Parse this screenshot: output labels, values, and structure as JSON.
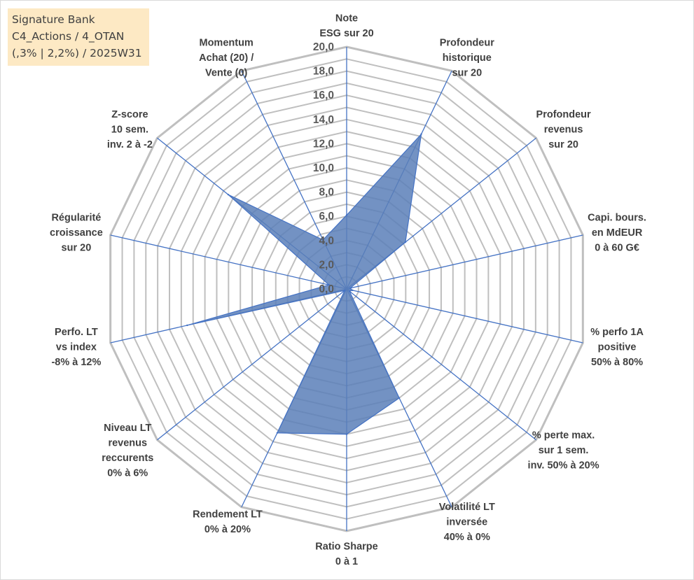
{
  "title_box": {
    "line1": "Signature Bank",
    "line2": "C4_Actions / 4_OTAN",
    "line3": "(,3% | 2,2%) / 2025W31",
    "background": "#fde9c4"
  },
  "chart_data": {
    "type": "radar",
    "rlim": [
      0,
      20
    ],
    "ticks": [
      "0,0",
      "2,0",
      "4,0",
      "6,0",
      "8,0",
      "10,0",
      "12,0",
      "14,0",
      "16,0",
      "18,0",
      "20,0"
    ],
    "tick_values": [
      0,
      2,
      4,
      6,
      8,
      10,
      12,
      14,
      16,
      18,
      20
    ],
    "grid": true,
    "legend": "none",
    "series_color": "#4472c4",
    "fill_color": "#5b7fb8",
    "grid_color": "#bfbfbf",
    "axes": [
      {
        "label": [
          "Note",
          "ESG sur 20"
        ],
        "value": 6.1
      },
      {
        "label": [
          "Profondeur",
          "historique",
          "sur 20"
        ],
        "value": 14.2
      },
      {
        "label": [
          "Profondeur",
          "revenus",
          "sur 20"
        ],
        "value": 6.2
      },
      {
        "label": [
          "Capi. bours.",
          "en MdEUR",
          "0 à 60 G€"
        ],
        "value": 0.3
      },
      {
        "label": [
          "% perfo 1A",
          "positive",
          "50% à 80%"
        ],
        "value": 0.5
      },
      {
        "label": [
          "% perte max.",
          "sur 1 sem.",
          "inv. 50% à 20%"
        ],
        "value": 0.3
      },
      {
        "label": [
          "Volatilité LT",
          "inversée",
          "40% à 0%"
        ],
        "value": 10.0
      },
      {
        "label": [
          "Ratio Sharpe",
          "0 à 1"
        ],
        "value": 12.0
      },
      {
        "label": [
          "Rendement LT",
          "0% à 20%"
        ],
        "value": 13.2
      },
      {
        "label": [
          "Niveau LT",
          "revenus",
          "reccurents",
          "0% à 6%"
        ],
        "value": 0.2
      },
      {
        "label": [
          "Perfo. LT",
          "vs index",
          "-8% à 12%"
        ],
        "value": 13.5
      },
      {
        "label": [
          "Régularité",
          "croissance",
          "sur 20"
        ],
        "value": 1.5
      },
      {
        "label": [
          "Z-score",
          "10 sem.",
          "inv. 2 à -2"
        ],
        "value": 12.5
      },
      {
        "label": [
          "Momentum",
          "Achat (20) /",
          "Vente (0)"
        ],
        "value": 4.5
      }
    ]
  }
}
